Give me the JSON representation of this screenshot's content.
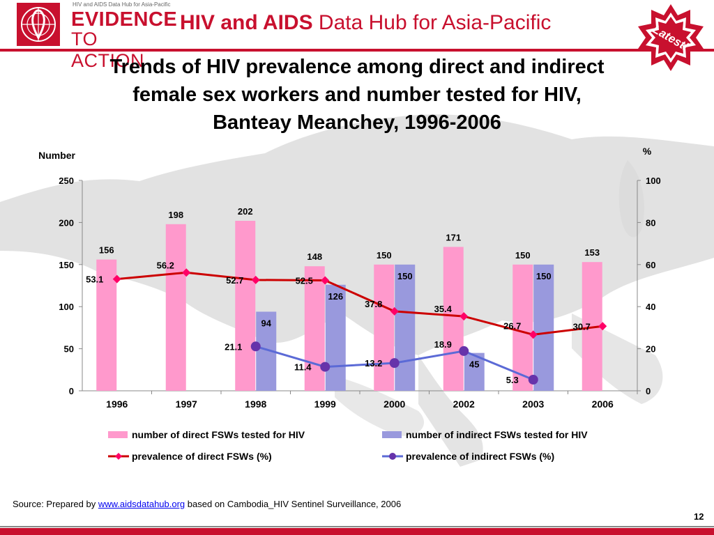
{
  "header": {
    "logo_small_text": "HIV and AIDS Data Hub for Asia-Pacific",
    "logo_line1": "EVIDENCE",
    "logo_line2": "TO ACTION",
    "hub_title_bold": "HIV and AIDS",
    "hub_title_rest": " Data Hub for Asia-Pacific",
    "badge_text": "Latest!"
  },
  "slide": {
    "title_line1": "Trends of HIV prevalence among direct and indirect",
    "title_line2": "female sex workers and number tested for HIV,",
    "title_line3": "Banteay Meanchey, 1996-2006"
  },
  "footer": {
    "source_prefix": "Source: Prepared by ",
    "source_link": "www.aidsdatahub.org",
    "source_suffix": "  based on Cambodia_HIV Sentinel Surveillance, 2006",
    "page_number": "12"
  },
  "colors": {
    "brand_red": "#c8102e",
    "bar_direct": "#ff99cc",
    "bar_indirect": "#9999dd",
    "line_direct": "#cc0000",
    "line_direct_marker": "#ff0066",
    "line_indirect": "#5b6ad6",
    "line_indirect_marker": "#6633aa"
  },
  "chart_data": {
    "type": "bar",
    "categories": [
      "1996",
      "1997",
      "1998",
      "1999",
      "2000",
      "2002",
      "2003",
      "2006"
    ],
    "ylabel_left": "Number",
    "ylabel_right": "%",
    "ylim_left": [
      0,
      250
    ],
    "ylim_right": [
      0,
      100
    ],
    "yticks_left": [
      "0",
      "50",
      "100",
      "150",
      "200",
      "250"
    ],
    "yticks_right": [
      "0",
      "20",
      "40",
      "60",
      "80",
      "100"
    ],
    "legend_position": "bottom",
    "series": [
      {
        "name": "number of direct FSWs tested for HIV",
        "type": "bar",
        "axis": "left",
        "values": [
          156,
          198,
          202,
          148,
          150,
          171,
          150,
          153
        ]
      },
      {
        "name": "number of indirect FSWs tested for HIV",
        "type": "bar",
        "axis": "left",
        "values": [
          null,
          null,
          94,
          126,
          150,
          45,
          150,
          null
        ]
      },
      {
        "name": "prevalence of direct FSWs (%)",
        "type": "line",
        "axis": "right",
        "values": [
          53.1,
          56.2,
          52.7,
          52.5,
          37.8,
          35.4,
          26.7,
          30.7
        ]
      },
      {
        "name": "prevalence of indirect FSWs (%)",
        "type": "line",
        "axis": "right",
        "values": [
          null,
          null,
          21.1,
          11.4,
          13.2,
          18.9,
          5.3,
          null
        ]
      }
    ]
  }
}
